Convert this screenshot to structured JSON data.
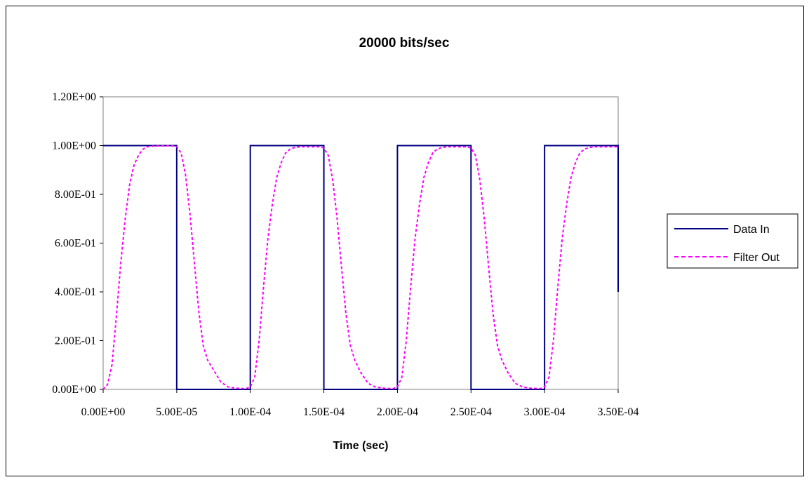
{
  "chart_data": {
    "type": "line",
    "title": "20000 bits/sec",
    "xlabel": "Time (sec)",
    "ylabel": "",
    "xlim": [
      0,
      0.00035
    ],
    "ylim": [
      0,
      1.2
    ],
    "x_tick_labels": [
      "0.00E+00",
      "5.00E-05",
      "1.00E-04",
      "1.50E-04",
      "2.00E-04",
      "2.50E-04",
      "3.00E-04",
      "3.50E-04"
    ],
    "y_tick_labels": [
      "0.00E+00",
      "2.00E-01",
      "4.00E-01",
      "6.00E-01",
      "8.00E-01",
      "1.00E+00",
      "1.20E+00"
    ],
    "grid": false,
    "legend_position": "right",
    "series": [
      {
        "name": "Data In",
        "color": "#000080",
        "style": "solid",
        "x": [
          0,
          5e-05,
          5e-05,
          0.0001,
          0.0001,
          0.00015,
          0.00015,
          0.0002,
          0.0002,
          0.00025,
          0.00025,
          0.0003,
          0.0003,
          0.00035,
          0.00035
        ],
        "y": [
          1,
          1,
          0,
          0,
          1,
          1,
          0,
          0,
          1,
          1,
          0,
          0,
          1,
          1,
          0.4
        ]
      },
      {
        "name": "Filter Out",
        "color": "#ff00ff",
        "style": "dashed",
        "x": [
          0,
          3e-06,
          6e-06,
          9e-06,
          1.2e-05,
          1.5e-05,
          1.8e-05,
          2.1e-05,
          2.4e-05,
          2.7e-05,
          3e-05,
          3.4e-05,
          4e-05,
          4.7e-05,
          5e-05,
          5.3e-05,
          5.6e-05,
          5.9e-05,
          6.2e-05,
          6.5e-05,
          6.8e-05,
          7.1e-05,
          7.5e-05,
          8e-05,
          8.5e-05,
          9e-05,
          9.7e-05,
          0.0001,
          0.000103,
          0.000106,
          0.000109,
          0.000112,
          0.000115,
          0.000118,
          0.000121,
          0.000124,
          0.000127,
          0.00013,
          0.000134,
          0.00014,
          0.000147,
          0.00015,
          0.000153,
          0.000156,
          0.000159,
          0.000162,
          0.000165,
          0.000168,
          0.000171,
          0.000175,
          0.00018,
          0.000185,
          0.00019,
          0.000197,
          0.0002,
          0.000203,
          0.000206,
          0.000209,
          0.000212,
          0.000215,
          0.000218,
          0.000221,
          0.000224,
          0.000227,
          0.00023,
          0.000234,
          0.00024,
          0.000247,
          0.00025,
          0.000253,
          0.000256,
          0.000259,
          0.000262,
          0.000265,
          0.000268,
          0.000271,
          0.000275,
          0.00028,
          0.000285,
          0.00029,
          0.000297,
          0.0003,
          0.000303,
          0.000306,
          0.000309,
          0.000312,
          0.000315,
          0.000318,
          0.000321,
          0.000324,
          0.000327,
          0.00033,
          0.000334,
          0.00034,
          0.000347,
          0.00035
        ],
        "y": [
          0.0,
          0.02,
          0.1,
          0.3,
          0.52,
          0.7,
          0.84,
          0.92,
          0.96,
          0.985,
          0.995,
          0.998,
          0.999,
          0.999,
          0.995,
          0.97,
          0.88,
          0.72,
          0.52,
          0.32,
          0.18,
          0.12,
          0.08,
          0.03,
          0.01,
          0.005,
          0.003,
          0.01,
          0.05,
          0.2,
          0.42,
          0.62,
          0.76,
          0.87,
          0.93,
          0.97,
          0.985,
          0.992,
          0.995,
          0.995,
          0.995,
          0.99,
          0.96,
          0.86,
          0.7,
          0.5,
          0.31,
          0.18,
          0.12,
          0.07,
          0.025,
          0.01,
          0.005,
          0.003,
          0.01,
          0.05,
          0.2,
          0.42,
          0.62,
          0.76,
          0.87,
          0.93,
          0.97,
          0.985,
          0.992,
          0.995,
          0.995,
          0.995,
          0.99,
          0.96,
          0.86,
          0.7,
          0.5,
          0.31,
          0.18,
          0.12,
          0.07,
          0.025,
          0.01,
          0.005,
          0.003,
          0.01,
          0.05,
          0.2,
          0.42,
          0.62,
          0.76,
          0.87,
          0.93,
          0.97,
          0.985,
          0.992,
          0.995,
          0.995,
          0.995,
          0.995
        ]
      }
    ]
  }
}
